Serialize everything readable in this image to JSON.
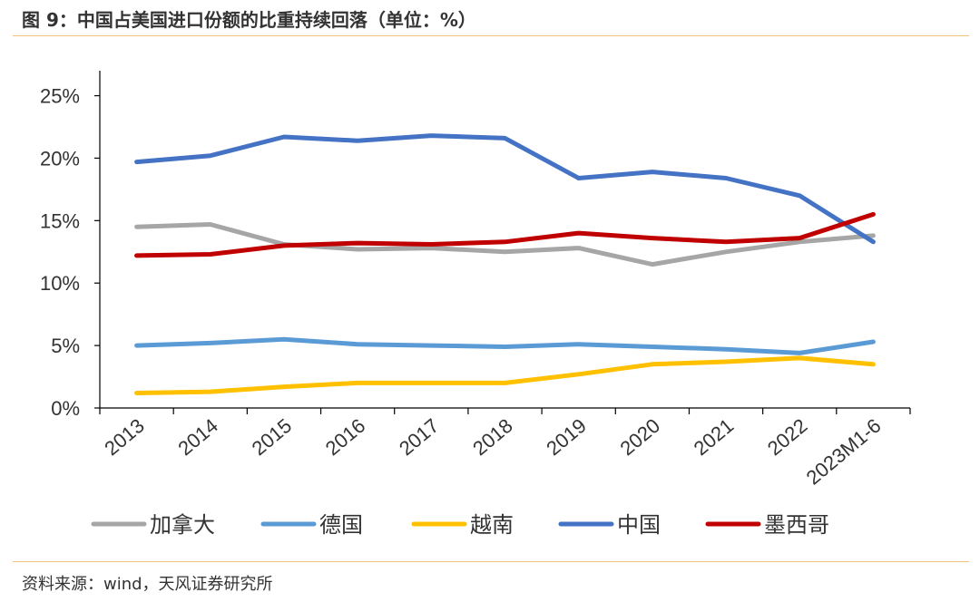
{
  "title": "图 9：中国占美国进口份额的比重持续回落（单位：%）",
  "source": "资料来源：wind，天风证券研究所",
  "chart_data": {
    "type": "line",
    "categories": [
      "2013",
      "2014",
      "2015",
      "2016",
      "2017",
      "2018",
      "2019",
      "2020",
      "2021",
      "2022",
      "2023M1-6"
    ],
    "y_ticks": [
      "0%",
      "5%",
      "10%",
      "15%",
      "20%",
      "25%"
    ],
    "ylim": [
      0,
      27
    ],
    "grid": false,
    "legend_position": "bottom",
    "series": [
      {
        "name": "加拿大",
        "color": "#a6a6a6",
        "values": [
          14.5,
          14.7,
          13.1,
          12.7,
          12.8,
          12.5,
          12.8,
          11.5,
          12.5,
          13.3,
          13.8
        ]
      },
      {
        "name": "德国",
        "color": "#5b9bd5",
        "values": [
          5.0,
          5.2,
          5.5,
          5.1,
          5.0,
          4.9,
          5.1,
          4.9,
          4.7,
          4.4,
          5.3
        ]
      },
      {
        "name": "越南",
        "color": "#ffc000",
        "values": [
          1.2,
          1.3,
          1.7,
          2.0,
          2.0,
          2.0,
          2.7,
          3.5,
          3.7,
          4.0,
          3.5
        ]
      },
      {
        "name": "中国",
        "color": "#4472c4",
        "values": [
          19.7,
          20.2,
          21.7,
          21.4,
          21.8,
          21.6,
          18.4,
          18.9,
          18.4,
          17.0,
          13.3
        ]
      },
      {
        "name": "墨西哥",
        "color": "#c00000",
        "values": [
          12.2,
          12.3,
          13.0,
          13.2,
          13.1,
          13.3,
          14.0,
          13.6,
          13.3,
          13.6,
          15.5
        ]
      }
    ]
  }
}
